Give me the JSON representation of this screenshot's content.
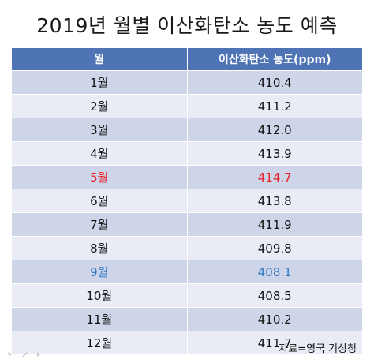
{
  "title": "2019년 월별 이산화탄소 농도 예측",
  "table": {
    "headers": [
      "월",
      "이산화탄소 농도(ppm)"
    ],
    "rows": [
      {
        "month": "1월",
        "value": "410.4"
      },
      {
        "month": "2월",
        "value": "411.2"
      },
      {
        "month": "3월",
        "value": "412.0"
      },
      {
        "month": "4월",
        "value": "413.9"
      },
      {
        "month": "5월",
        "value": "414.7"
      },
      {
        "month": "6월",
        "value": "413.8"
      },
      {
        "month": "7월",
        "value": "411.9"
      },
      {
        "month": "8월",
        "value": "409.8"
      },
      {
        "month": "9월",
        "value": "408.1"
      },
      {
        "month": "10월",
        "value": "408.5"
      },
      {
        "month": "11월",
        "value": "410.2"
      },
      {
        "month": "12월",
        "value": "411.7"
      }
    ]
  },
  "source": "자료=영국 기상청",
  "colors": {
    "header_bg": "#4f74b6",
    "row_odd": "#cfd5e9",
    "row_even": "#e9ebf5",
    "highlight_max": "#e81e25",
    "highlight_min": "#2e78c2"
  },
  "highlights": {
    "max_row_index": 4,
    "min_row_index": 8
  },
  "slide_controls": {
    "icons": [
      "pointer-icon",
      "pen-icon",
      "forward-icon"
    ]
  }
}
